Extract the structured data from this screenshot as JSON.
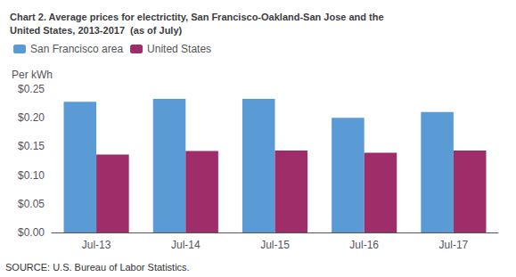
{
  "chart_data": {
    "type": "bar",
    "title": "Chart 2. Average prices for electrictity, San Francisco-Oakland-San Jose and the\nUnited States, 2013-2017  (as of July)",
    "y_label": "Per kWh",
    "annotations": [
      "SOURCE: U.S. Bureau of Labor Statistics."
    ],
    "categories": [
      "Jul-13",
      "Jul-14",
      "Jul-15",
      "Jul-16",
      "Jul-17"
    ],
    "series": [
      {
        "name": "San Francisco area",
        "color": "#5B9BD5",
        "values": [
          0.228,
          0.233,
          0.233,
          0.2,
          0.21
        ]
      },
      {
        "name": "United States",
        "color": "#9E2D6A",
        "values": [
          0.136,
          0.142,
          0.143,
          0.139,
          0.143
        ]
      }
    ],
    "ylim": [
      0,
      0.25
    ],
    "yticks": [
      {
        "value": 0,
        "label": "$0.00"
      },
      {
        "value": 0.05,
        "label": "$0.05"
      },
      {
        "value": 0.1,
        "label": "$0.10"
      },
      {
        "value": 0.15,
        "label": "$0.15"
      },
      {
        "value": 0.2,
        "label": "$0.20"
      },
      {
        "value": 0.25,
        "label": "$0.25"
      }
    ],
    "grid": false,
    "legend": "upper left"
  }
}
